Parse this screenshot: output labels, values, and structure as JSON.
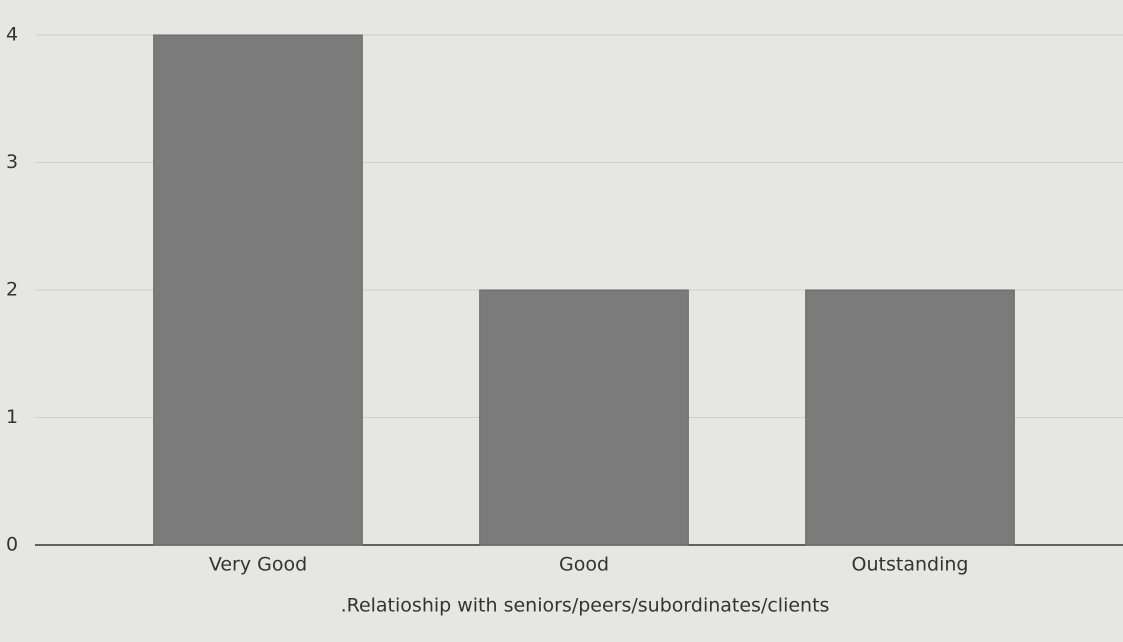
{
  "chart_data": {
    "type": "bar",
    "x_label": ".Relatioship with seniors/peers/subordinates/clients",
    "categories": [
      "Very Good",
      "Good",
      "Outstanding"
    ],
    "values": [
      4,
      2,
      2
    ],
    "color": "#7b7b7b",
    "ylim": [
      0,
      4
    ],
    "yticks": [
      0,
      1,
      2,
      3,
      4
    ],
    "grid": true
  }
}
